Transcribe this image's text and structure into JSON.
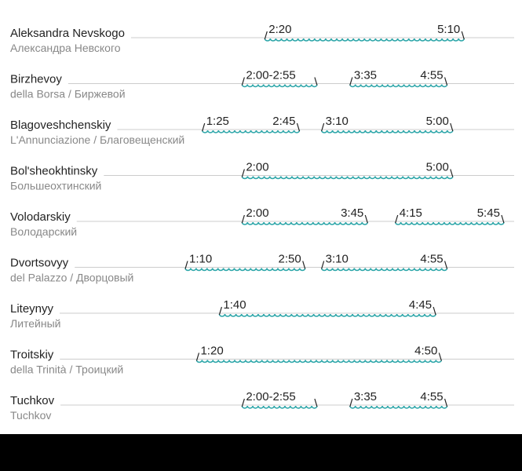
{
  "bridges": [
    {
      "name": "Aleksandra Nevskogo",
      "subtitle": "Александра Невского",
      "openings": [
        {
          "start": "2:20",
          "end": "5:10"
        }
      ]
    },
    {
      "name": "Birzhevoy",
      "subtitle": "della Borsa / Биржевой",
      "openings": [
        {
          "start": "2:00-2:55"
        },
        {
          "start": "3:35",
          "end": "4:55"
        }
      ]
    },
    {
      "name": "Blagoveshchenskiy",
      "subtitle": "L'Annunciazione / Благовещенский",
      "openings": [
        {
          "start": "1:25",
          "end": "2:45"
        },
        {
          "start": "3:10",
          "end": "5:00"
        }
      ]
    },
    {
      "name": "Bol'sheokhtinsky",
      "subtitle": "Большеохтинский",
      "openings": [
        {
          "start": "2:00",
          "end": "5:00"
        }
      ]
    },
    {
      "name": "Volodarskiy",
      "subtitle": "Володарский",
      "openings": [
        {
          "start": "2:00",
          "end": "3:45"
        },
        {
          "start": "4:15",
          "end": "5:45"
        }
      ]
    },
    {
      "name": "Dvortsovyy",
      "subtitle": "del Palazzo / Дворцовый",
      "openings": [
        {
          "start": "1:10",
          "end": "2:50"
        },
        {
          "start": "3:10",
          "end": "4:55"
        }
      ]
    },
    {
      "name": "Liteynyy",
      "subtitle": "Литейный",
      "openings": [
        {
          "start": "1:40",
          "end": "4:45"
        }
      ]
    },
    {
      "name": "Troitskiy",
      "subtitle": "della Trinità / Троицкий",
      "openings": [
        {
          "start": "1:20",
          "end": "4:50"
        }
      ]
    },
    {
      "name": "Tuchkov",
      "subtitle": "Tuchkov",
      "openings": [
        {
          "start": "2:00-2:55"
        },
        {
          "start": "3:35",
          "end": "4:55"
        }
      ]
    }
  ]
}
